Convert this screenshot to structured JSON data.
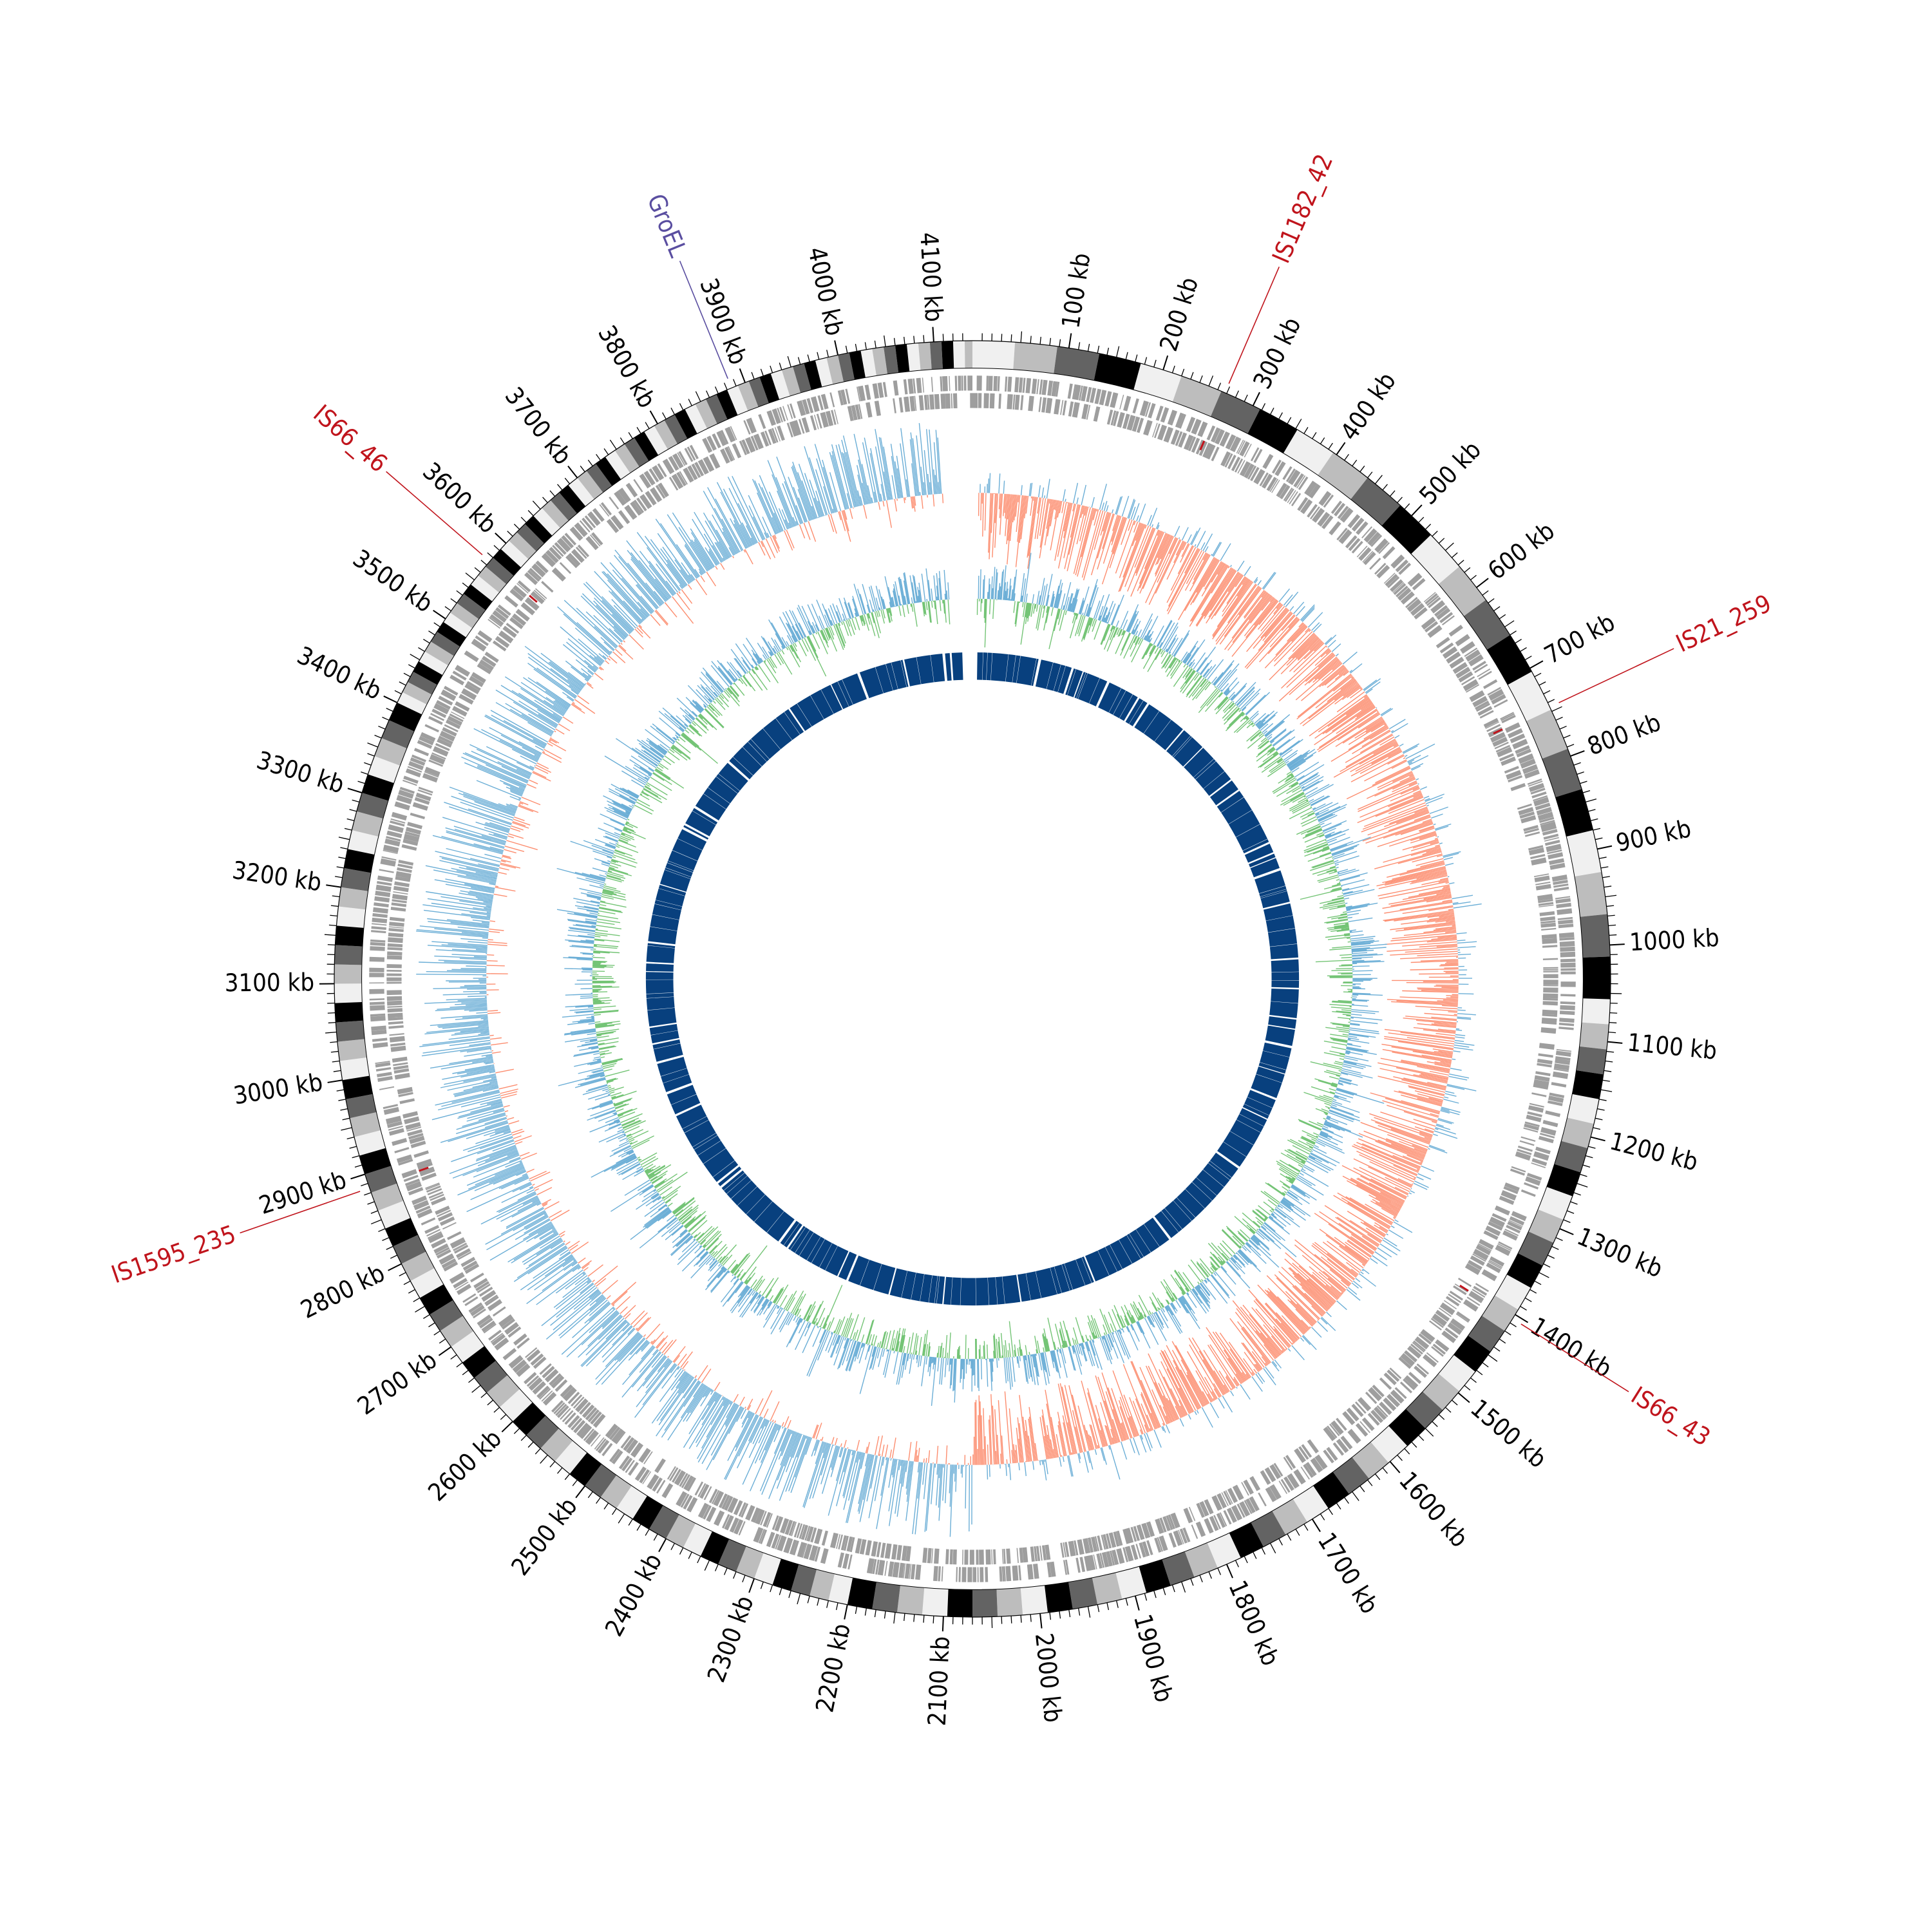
{
  "chart_data": {
    "type": "circular-genome-map",
    "genome_length_kb": 4140,
    "tick_labels": [
      "100 kb",
      "200 kb",
      "300 kb",
      "400 kb",
      "500 kb",
      "600 kb",
      "700 kb",
      "800 kb",
      "900 kb",
      "1000 kb",
      "1100 kb",
      "1200 kb",
      "1300 kb",
      "1400 kb",
      "1500 kb",
      "1600 kb",
      "1700 kb",
      "1800 kb",
      "1900 kb",
      "2000 kb",
      "2100 kb",
      "2200 kb",
      "2300 kb",
      "2400 kb",
      "2500 kb",
      "2600 kb",
      "2700 kb",
      "2800 kb",
      "2900 kb",
      "3000 kb",
      "3100 kb",
      "3200 kb",
      "3300 kb",
      "3400 kb",
      "3500 kb",
      "3600 kb",
      "3700 kb",
      "3800 kb",
      "3900 kb",
      "4000 kb",
      "4100 kb"
    ],
    "tick_positions_kb": [
      100,
      200,
      300,
      400,
      500,
      600,
      700,
      800,
      900,
      1000,
      1100,
      1200,
      1300,
      1400,
      1500,
      1600,
      1700,
      1800,
      1900,
      2000,
      2100,
      2200,
      2300,
      2400,
      2500,
      2600,
      2700,
      2800,
      2900,
      3000,
      3100,
      3200,
      3300,
      3400,
      3500,
      3600,
      3700,
      3800,
      3900,
      4000,
      4100
    ],
    "features": [
      {
        "name": "GroEL",
        "position_kb": 3885,
        "color": "#5a4ea0"
      },
      {
        "name": "IS1182_42",
        "position_kb": 268,
        "color": "#c0141c"
      },
      {
        "name": "IS21_259",
        "position_kb": 745,
        "color": "#c0141c"
      },
      {
        "name": "IS66_43",
        "position_kb": 1405,
        "color": "#c0141c"
      },
      {
        "name": "IS1595_235",
        "position_kb": 2885,
        "color": "#c0141c"
      },
      {
        "name": "IS66_46",
        "position_kb": 3575,
        "color": "#c0141c"
      }
    ],
    "tracks": [
      "karyotype-bands",
      "genes-strand-plus",
      "genes-strand-minus",
      "gc-skew",
      "gc-content",
      "blast-hits"
    ],
    "colors": {
      "skew_positive": "#fc8d6f",
      "skew_negative": "#6baed6",
      "gc_above": "#6baed6",
      "gc_below": "#74c476",
      "blast": "#08407e",
      "genes": "#9e9e9e",
      "axis": "#000000"
    }
  }
}
